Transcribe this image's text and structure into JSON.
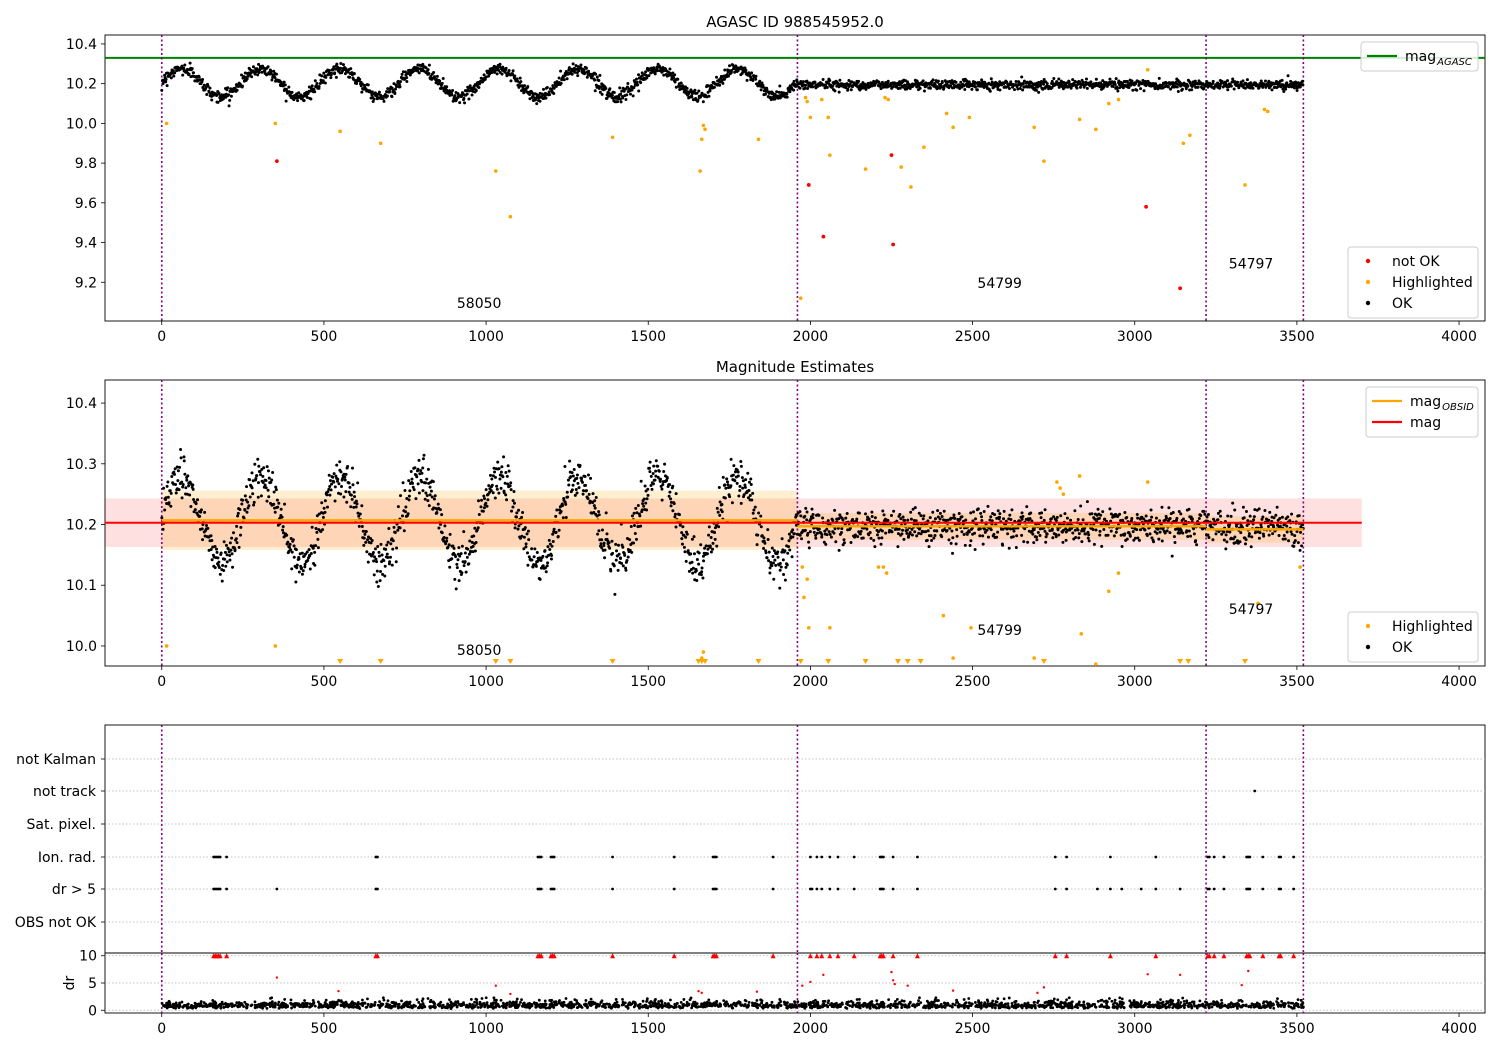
{
  "chart_data": [
    {
      "type": "scatter",
      "title": "AGASC ID 988545952.0",
      "xlim": [
        -175,
        4080
      ],
      "ylim": [
        9.005,
        10.445
      ],
      "yticks": [
        9.2,
        9.4,
        9.6,
        9.8,
        10.0,
        10.2,
        10.4
      ],
      "ytick_labels": [
        "9.2",
        "9.4",
        "9.6",
        "9.8",
        "10.0",
        "10.2",
        "10.4"
      ],
      "xticks": [
        0,
        500,
        1000,
        1500,
        2000,
        2500,
        3000,
        3500,
        4000
      ],
      "xtick_labels": [
        "0",
        "500",
        "1000",
        "1500",
        "2000",
        "2500",
        "3000",
        "3500",
        "4000"
      ],
      "obs_boundaries": [
        0,
        1960,
        3220,
        3520
      ],
      "annotations": [
        {
          "text": "58050",
          "x": 910,
          "y": 9.07
        },
        {
          "text": "54799",
          "x": 2515,
          "y": 9.17
        },
        {
          "text": "54797",
          "x": 3290,
          "y": 9.27
        }
      ],
      "agasc_mag": 10.33,
      "legend_upper": {
        "entries": [
          {
            "label": "mag",
            "sub": "AGASC",
            "color": "#008000"
          }
        ],
        "position": "upper-right"
      },
      "legend_lower": {
        "entries": [
          {
            "label": "not OK",
            "color": "#ff0000"
          },
          {
            "label": "Highlighted",
            "color": "#ffa500"
          },
          {
            "label": "OK",
            "color": "#000000"
          }
        ],
        "position": "lower-right"
      },
      "series": [
        {
          "name": "OK",
          "segments": [
            {
              "x": [
                0,
                1960
              ],
              "mean": 10.205,
              "amplitude": 0.07,
              "period": 245,
              "noise": 0.015
            },
            {
              "x": [
                1960,
                3520
              ],
              "mean": 10.195,
              "amplitude": 0.0,
              "period": 0,
              "noise": 0.012
            }
          ]
        },
        {
          "name": "Highlighted",
          "x": [
            15,
            350,
            550,
            675,
            1030,
            1075,
            1390,
            1660,
            1665,
            1670,
            1675,
            1840,
            1970,
            1985,
            1990,
            2000,
            2035,
            2055,
            2060,
            2170,
            2230,
            2240,
            2280,
            2310,
            2350,
            2420,
            2440,
            2490,
            2690,
            2720,
            2830,
            2880,
            2920,
            2950,
            3040,
            3150,
            3170,
            3340,
            3400,
            3410
          ],
          "y": [
            10.0,
            10.0,
            9.96,
            9.9,
            9.76,
            9.53,
            9.93,
            9.76,
            9.92,
            9.99,
            9.97,
            9.92,
            9.12,
            10.13,
            10.11,
            10.03,
            10.12,
            10.03,
            9.84,
            9.77,
            10.13,
            10.12,
            9.78,
            9.68,
            9.88,
            10.05,
            9.98,
            10.03,
            9.98,
            9.81,
            10.02,
            9.97,
            10.1,
            10.12,
            10.27,
            9.9,
            9.94,
            9.69,
            10.07,
            10.06
          ]
        },
        {
          "name": "not OK",
          "x": [
            355,
            1995,
            2040,
            2250,
            2255,
            3035,
            3140
          ],
          "y": [
            9.81,
            9.69,
            9.43,
            9.84,
            9.39,
            9.58,
            9.17
          ]
        }
      ]
    },
    {
      "type": "scatter",
      "title": "Magnitude Estimates",
      "xlim": [
        -175,
        4080
      ],
      "ylim": [
        9.967,
        10.438
      ],
      "yticks": [
        10.0,
        10.1,
        10.2,
        10.3,
        10.4
      ],
      "ytick_labels": [
        "10.0",
        "10.1",
        "10.2",
        "10.3",
        "10.4"
      ],
      "xticks": [
        0,
        500,
        1000,
        1500,
        2000,
        2500,
        3000,
        3500,
        4000
      ],
      "xtick_labels": [
        "0",
        "500",
        "1000",
        "1500",
        "2000",
        "2500",
        "3000",
        "3500",
        "4000"
      ],
      "obs_boundaries": [
        0,
        1960,
        3220,
        3520
      ],
      "annotations": [
        {
          "text": "58050",
          "x": 910,
          "y": 9.985
        },
        {
          "text": "54799",
          "x": 2515,
          "y": 10.018
        },
        {
          "text": "54797",
          "x": 3290,
          "y": 10.053
        }
      ],
      "mag": 10.203,
      "mag_band": [
        10.163,
        10.243
      ],
      "mag_line_x": [
        -175,
        3700
      ],
      "obs_mags": [
        {
          "x": [
            0,
            1960
          ],
          "mag": 10.207,
          "band": [
            10.158,
            10.256
          ]
        },
        {
          "x": [
            1960,
            3220
          ],
          "mag": 10.197,
          "band": [
            10.175,
            10.219
          ]
        },
        {
          "x": [
            3220,
            3520
          ],
          "mag": 10.192,
          "band": [
            10.17,
            10.214
          ]
        }
      ],
      "legend_upper": {
        "entries": [
          {
            "label": "mag",
            "sub": "OBSID",
            "color": "#ffa500"
          },
          {
            "label": "mag",
            "sub": "",
            "color": "#ff0000"
          }
        ],
        "position": "upper-right"
      },
      "legend_lower": {
        "entries": [
          {
            "label": "Highlighted",
            "color": "#ffa500"
          },
          {
            "label": "OK",
            "color": "#000000"
          }
        ],
        "position": "lower-right"
      },
      "series": [
        {
          "name": "OK",
          "segments": [
            {
              "x": [
                0,
                1960
              ],
              "mean": 10.207,
              "amplitude": 0.07,
              "period": 245,
              "noise": 0.017
            },
            {
              "x": [
                1960,
                3520
              ],
              "mean": 10.196,
              "amplitude": 0.0,
              "period": 0,
              "noise": 0.014
            }
          ]
        },
        {
          "name": "Highlighted",
          "x": [
            15,
            350,
            1665,
            1670,
            1975,
            1980,
            1990,
            1995,
            2060,
            2210,
            2225,
            2235,
            2410,
            2440,
            2495,
            2690,
            2760,
            2770,
            2780,
            2830,
            2835,
            2880,
            2920,
            2950,
            3040,
            3380,
            3510
          ],
          "y": [
            10.0,
            10.0,
            9.98,
            9.99,
            10.13,
            10.08,
            10.11,
            10.03,
            10.03,
            10.13,
            10.13,
            10.12,
            10.05,
            9.98,
            10.03,
            9.98,
            10.27,
            10.26,
            10.25,
            10.28,
            10.02,
            9.97,
            10.09,
            10.12,
            10.27,
            10.07,
            10.13
          ]
        },
        {
          "name": "Highlighted-below",
          "x": [
            550,
            675,
            1030,
            1075,
            1390,
            1655,
            1665,
            1675,
            1840,
            1970,
            2055,
            2170,
            2270,
            2300,
            2340,
            2720,
            3140,
            3165,
            3340
          ]
        }
      ]
    },
    {
      "type": "scatter",
      "title": "",
      "xlim": [
        -175,
        4080
      ],
      "xticks": [
        0,
        500,
        1000,
        1500,
        2000,
        2500,
        3000,
        3500,
        4000
      ],
      "xtick_labels": [
        "0",
        "500",
        "1000",
        "1500",
        "2000",
        "2500",
        "3000",
        "3500",
        "4000"
      ],
      "obs_boundaries": [
        0,
        1960,
        3220,
        3520
      ],
      "flag_rows": [
        "not Kalman",
        "not track",
        "Sat. pixel.",
        "Ion. rad.",
        "dr > 5",
        "OBS not OK"
      ],
      "flags": {
        "not track": [
          3370
        ],
        "Ion. rad.": [
          160,
          165,
          170,
          175,
          180,
          200,
          660,
          665,
          1160,
          1165,
          1170,
          1200,
          1205,
          1210,
          1390,
          1580,
          1700,
          1705,
          1710,
          1885,
          2000,
          2020,
          2035,
          2060,
          2085,
          2135,
          2215,
          2220,
          2225,
          2255,
          2330,
          2755,
          2790,
          2925,
          3065,
          3225,
          3230,
          3245,
          3275,
          3345,
          3350,
          3355,
          3395,
          3445,
          3450,
          3490
        ],
        "dr > 5": [
          160,
          165,
          170,
          175,
          180,
          200,
          355,
          660,
          665,
          1160,
          1165,
          1170,
          1200,
          1205,
          1210,
          1390,
          1580,
          1700,
          1705,
          1710,
          1885,
          2000,
          2005,
          2020,
          2035,
          2060,
          2085,
          2135,
          2215,
          2220,
          2225,
          2255,
          2330,
          2755,
          2790,
          2885,
          2925,
          2960,
          3020,
          3065,
          3140,
          3225,
          3230,
          3245,
          3275,
          3345,
          3350,
          3355,
          3395,
          3445,
          3450,
          3490
        ]
      },
      "dr": {
        "ylabel": "dr",
        "ylim": [
          -0.5,
          10.5
        ],
        "yticks": [
          0,
          5,
          10
        ],
        "ytick_labels": [
          "0",
          "5",
          "10"
        ],
        "typical": [
          0.3,
          1.9
        ],
        "clipped_x": [
          160,
          165,
          170,
          175,
          180,
          200,
          660,
          665,
          1160,
          1165,
          1170,
          1200,
          1205,
          1210,
          1390,
          1580,
          1700,
          1705,
          1710,
          1885,
          2000,
          2020,
          2035,
          2060,
          2085,
          2135,
          2215,
          2220,
          2225,
          2255,
          2330,
          2755,
          2790,
          2925,
          3065,
          3225,
          3230,
          3245,
          3275,
          3345,
          3350,
          3355,
          3395,
          3445,
          3450,
          3490
        ],
        "outliers_x": [
          355,
          545,
          1030,
          1075,
          1655,
          1665,
          1835,
          1975,
          2000,
          2040,
          2250,
          2255,
          2260,
          2300,
          2440,
          2700,
          2720,
          3040,
          3140,
          3330,
          3350
        ],
        "outliers_y": [
          6.0,
          3.5,
          4.5,
          3.0,
          3.5,
          3.2,
          3.4,
          4.5,
          5.2,
          6.5,
          7.0,
          5.5,
          4.8,
          4.5,
          3.6,
          3.2,
          4.2,
          6.6,
          6.5,
          4.6,
          7.2
        ]
      }
    }
  ]
}
